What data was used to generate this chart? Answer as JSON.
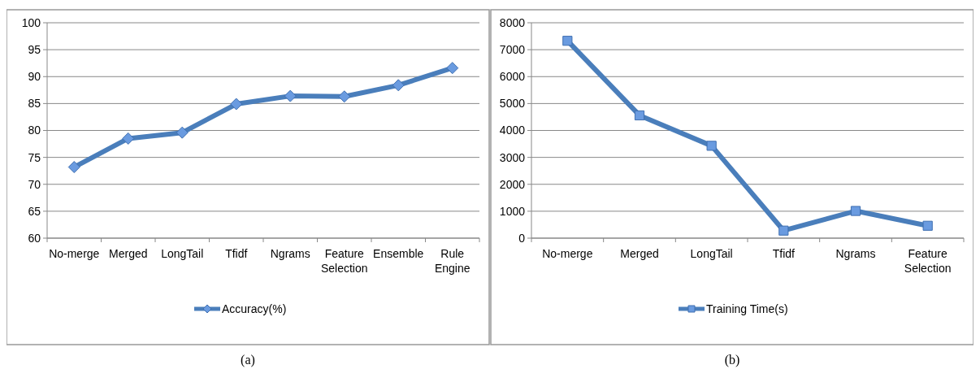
{
  "chart_data": [
    {
      "type": "line",
      "categories": [
        "No-merge",
        "Merged",
        "LongTail",
        "Tfidf",
        "Ngrams",
        "Feature Selection",
        "Ensemble",
        "Rule Engine"
      ],
      "series": [
        {
          "name": "Accuracy(%)",
          "color": "#4a7ebb",
          "values": [
            73.2,
            78.5,
            79.6,
            84.9,
            86.4,
            86.3,
            88.4,
            91.6
          ]
        }
      ],
      "ylim": [
        60,
        100
      ],
      "yticks": [
        60,
        65,
        70,
        75,
        80,
        85,
        90,
        95,
        100
      ],
      "grid": "y",
      "legend": "bottom",
      "marker": "diamond",
      "annotations": [
        "(a)"
      ]
    },
    {
      "type": "line",
      "categories": [
        "No-merge",
        "Merged",
        "LongTail",
        "Tfidf",
        "Ngrams",
        "Feature Selection"
      ],
      "series": [
        {
          "name": "Training Time(s)",
          "color": "#4a7ebb",
          "values": [
            7330,
            4560,
            3430,
            280,
            1010,
            460
          ]
        }
      ],
      "ylim": [
        0,
        8000
      ],
      "yticks": [
        0,
        1000,
        2000,
        3000,
        4000,
        5000,
        6000,
        7000,
        8000
      ],
      "grid": "y",
      "legend": "bottom",
      "marker": "square",
      "annotations": [
        "(b)"
      ]
    }
  ]
}
